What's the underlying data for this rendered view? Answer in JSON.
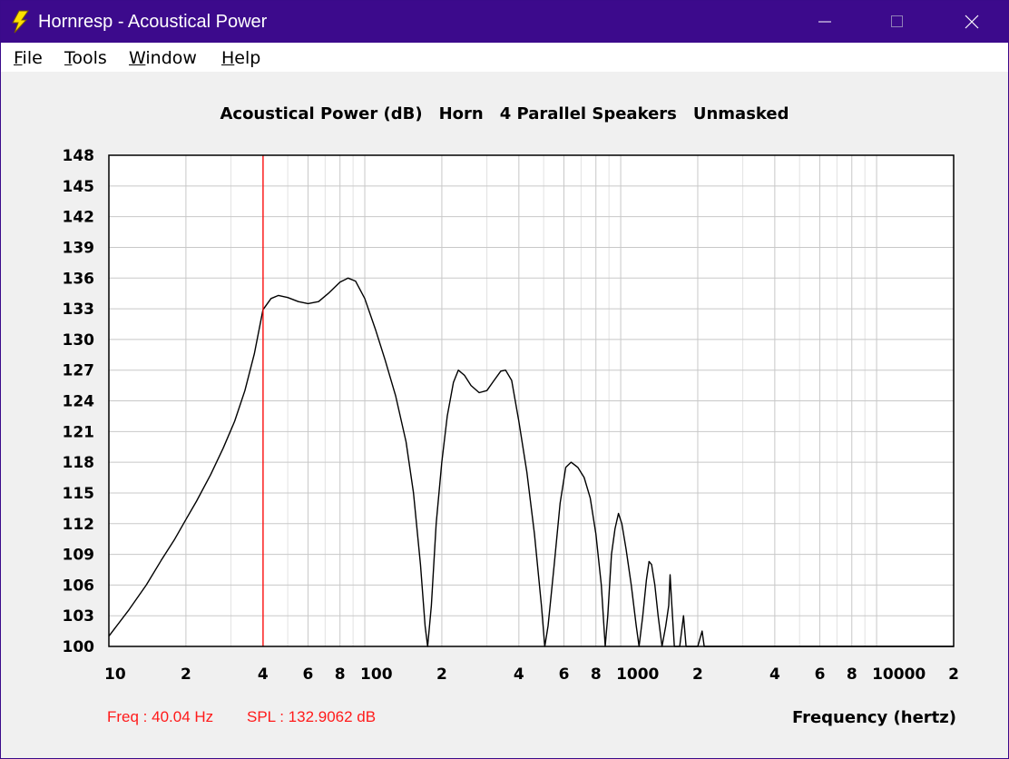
{
  "window": {
    "title": "Hornresp - Acoustical Power"
  },
  "menu": [
    "File",
    "Tools",
    "Window",
    "Help"
  ],
  "chart_data": {
    "type": "line",
    "title_parts": [
      "Acoustical Power (dB)",
      "Horn",
      "4 Parallel Speakers",
      "Unmasked"
    ],
    "xlabel": "Frequency (hertz)",
    "ylabel": "",
    "xscale": "log",
    "xlim": [
      10,
      20000
    ],
    "ylim": [
      100,
      148
    ],
    "yticks": [
      100,
      103,
      106,
      109,
      112,
      115,
      118,
      121,
      124,
      127,
      130,
      133,
      136,
      139,
      142,
      145,
      148
    ],
    "xtick_labels": [
      {
        "v": 10,
        "t": "10"
      },
      {
        "v": 20,
        "t": "2"
      },
      {
        "v": 40,
        "t": "4"
      },
      {
        "v": 60,
        "t": "6"
      },
      {
        "v": 80,
        "t": "8"
      },
      {
        "v": 100,
        "t": "100"
      },
      {
        "v": 200,
        "t": "2"
      },
      {
        "v": 400,
        "t": "4"
      },
      {
        "v": 600,
        "t": "6"
      },
      {
        "v": 800,
        "t": "8"
      },
      {
        "v": 1000,
        "t": "1000"
      },
      {
        "v": 2000,
        "t": "2"
      },
      {
        "v": 4000,
        "t": "4"
      },
      {
        "v": 6000,
        "t": "6"
      },
      {
        "v": 8000,
        "t": "8"
      },
      {
        "v": 10000,
        "t": "10000"
      },
      {
        "v": 20000,
        "t": "2"
      }
    ],
    "grid": true,
    "marker": {
      "freq": 40.04,
      "color": "#ff0000"
    },
    "line_color": "#000000",
    "series": [
      {
        "points": [
          [
            10,
            101.0
          ],
          [
            12,
            103.6
          ],
          [
            14,
            106.0
          ],
          [
            16,
            108.4
          ],
          [
            18,
            110.4
          ],
          [
            20,
            112.4
          ],
          [
            22,
            114.2
          ],
          [
            25,
            116.8
          ],
          [
            28,
            119.4
          ],
          [
            31,
            122.0
          ],
          [
            34,
            125.0
          ],
          [
            37,
            128.6
          ],
          [
            40,
            132.9
          ],
          [
            43,
            134.0
          ],
          [
            46,
            134.3
          ],
          [
            50,
            134.1
          ],
          [
            55,
            133.7
          ],
          [
            60,
            133.5
          ],
          [
            66,
            133.7
          ],
          [
            72,
            134.5
          ],
          [
            80,
            135.6
          ],
          [
            86,
            136.0
          ],
          [
            92,
            135.7
          ],
          [
            100,
            134.0
          ],
          [
            110,
            131.0
          ],
          [
            120,
            128.0
          ],
          [
            132,
            124.5
          ],
          [
            145,
            120.0
          ],
          [
            155,
            115.0
          ],
          [
            165,
            108.0
          ],
          [
            172,
            102.0
          ],
          [
            176,
            100.0
          ],
          [
            182,
            104.0
          ],
          [
            190,
            112.0
          ],
          [
            200,
            118.0
          ],
          [
            210,
            122.5
          ],
          [
            222,
            125.8
          ],
          [
            232,
            127.0
          ],
          [
            245,
            126.5
          ],
          [
            260,
            125.5
          ],
          [
            280,
            124.8
          ],
          [
            300,
            125.0
          ],
          [
            320,
            126.0
          ],
          [
            340,
            126.9
          ],
          [
            355,
            127.0
          ],
          [
            375,
            126.0
          ],
          [
            400,
            122.0
          ],
          [
            430,
            117.0
          ],
          [
            460,
            111.0
          ],
          [
            490,
            104.0
          ],
          [
            505,
            100.0
          ],
          [
            520,
            102.0
          ],
          [
            550,
            108.0
          ],
          [
            580,
            114.0
          ],
          [
            610,
            117.5
          ],
          [
            640,
            118.0
          ],
          [
            680,
            117.5
          ],
          [
            720,
            116.5
          ],
          [
            760,
            114.5
          ],
          [
            800,
            111.0
          ],
          [
            840,
            106.0
          ],
          [
            870,
            100.0
          ],
          [
            890,
            103.0
          ],
          [
            920,
            109.0
          ],
          [
            950,
            111.5
          ],
          [
            980,
            113.0
          ],
          [
            1010,
            112.0
          ],
          [
            1050,
            109.5
          ],
          [
            1100,
            106.0
          ],
          [
            1150,
            102.0
          ],
          [
            1180,
            100.0
          ],
          [
            1220,
            103.0
          ],
          [
            1260,
            106.5
          ],
          [
            1290,
            108.3
          ],
          [
            1320,
            108.0
          ],
          [
            1360,
            106.0
          ],
          [
            1400,
            103.0
          ],
          [
            1450,
            100.0
          ],
          [
            1500,
            102.0
          ],
          [
            1540,
            104.0
          ],
          [
            1560,
            107.0
          ],
          [
            1580,
            104.5
          ],
          [
            1620,
            100.0
          ],
          [
            1700,
            100.0
          ],
          [
            1760,
            103.0
          ],
          [
            1800,
            100.0
          ],
          [
            2000,
            100.0
          ],
          [
            2080,
            101.5
          ],
          [
            2120,
            100.0
          ],
          [
            20000,
            100.0
          ]
        ]
      }
    ]
  },
  "readout": {
    "freq": "Freq : 40.04 Hz",
    "spl": "SPL : 132.9062 dB"
  }
}
